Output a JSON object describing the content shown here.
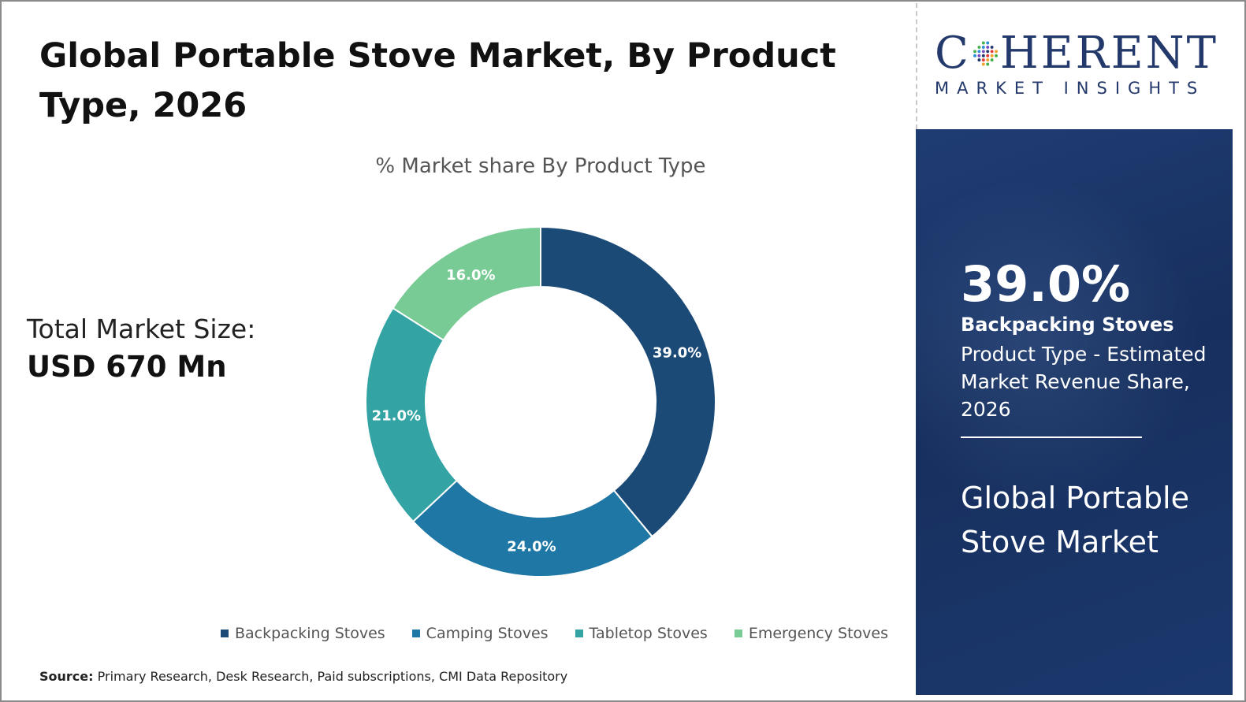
{
  "header": {
    "title": "Global Portable Stove Market, By Product Type, 2026"
  },
  "market_size": {
    "label": "Total Market Size:",
    "value": "USD 670 Mn"
  },
  "chart_data": {
    "type": "pie",
    "subtitle": "% Market share By Product Type",
    "categories": [
      "Backpacking Stoves",
      "Camping Stoves",
      "Tabletop Stoves",
      "Emergency Stoves"
    ],
    "values": [
      39.0,
      24.0,
      21.0,
      16.0
    ],
    "value_labels": [
      "39.0%",
      "24.0%",
      "21.0%",
      "16.0%"
    ],
    "colors": [
      "#1b4a77",
      "#1e77a4",
      "#33a3a3",
      "#78cb95"
    ],
    "donut": true,
    "legend_position": "bottom"
  },
  "source": {
    "label": "Source:",
    "text": "Primary Research, Desk Research, Paid subscriptions, CMI Data Repository"
  },
  "logo": {
    "word_start": "C",
    "word_end": "HERENT",
    "subtitle": "MARKET INSIGHTS",
    "color": "#23386b"
  },
  "panel": {
    "highlight_value": "39.0%",
    "highlight_label": "Backpacking Stoves",
    "highlight_desc": "Product Type - Estimated Market Revenue Share, 2026",
    "footer_title": "Global Portable Stove Market"
  }
}
